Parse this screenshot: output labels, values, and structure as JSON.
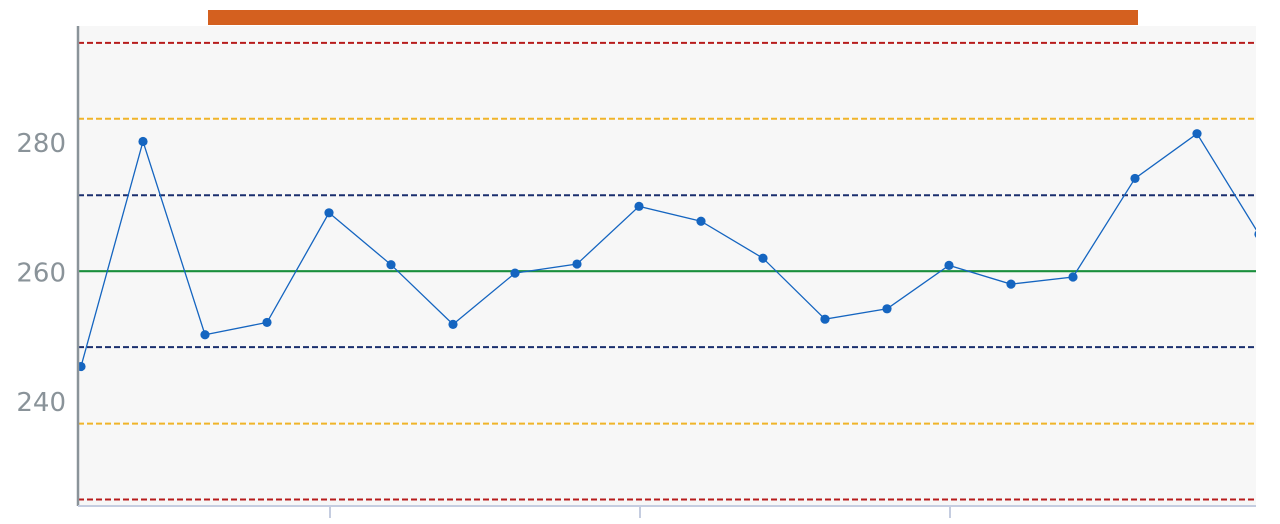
{
  "chart_data": {
    "type": "line",
    "title": "",
    "xlabel": "",
    "ylabel": "",
    "ylim": [
      224,
      298
    ],
    "xlim": [
      0,
      19
    ],
    "y_ticks": [
      240,
      260,
      280
    ],
    "grid": false,
    "legend": "none",
    "series": [
      {
        "x": [
          0,
          1,
          2,
          3,
          4,
          5,
          6,
          7,
          8,
          9,
          10,
          11,
          12,
          13,
          14,
          15,
          16,
          17,
          18,
          19
        ],
        "values": [
          245.5,
          280.2,
          250.4,
          252.3,
          269.2,
          261.2,
          252.0,
          259.9,
          261.3,
          270.2,
          267.9,
          262.2,
          252.8,
          254.4,
          261.1,
          258.2,
          259.3,
          274.5,
          281.4,
          265.9
        ],
        "color": "#1565c0"
      }
    ],
    "reference_lines": [
      {
        "value": 260.2,
        "color": "#1a8f3c",
        "style": "solid"
      },
      {
        "value": 271.9,
        "color": "#1a2f6e",
        "style": "dashed"
      },
      {
        "value": 248.5,
        "color": "#1a2f6e",
        "style": "dashed"
      },
      {
        "value": 283.7,
        "color": "#f0b429",
        "style": "dashed"
      },
      {
        "value": 236.7,
        "color": "#f0b429",
        "style": "dashed"
      },
      {
        "value": 295.4,
        "color": "#b71c1c",
        "style": "dashed"
      },
      {
        "value": 225.0,
        "color": "#b71c1c",
        "style": "dashed"
      }
    ]
  },
  "colors": {
    "plot_background": "#f7f7f7",
    "axis": "#8a9399",
    "x_axis": "#c5cde0",
    "banner": "#d4601f"
  }
}
